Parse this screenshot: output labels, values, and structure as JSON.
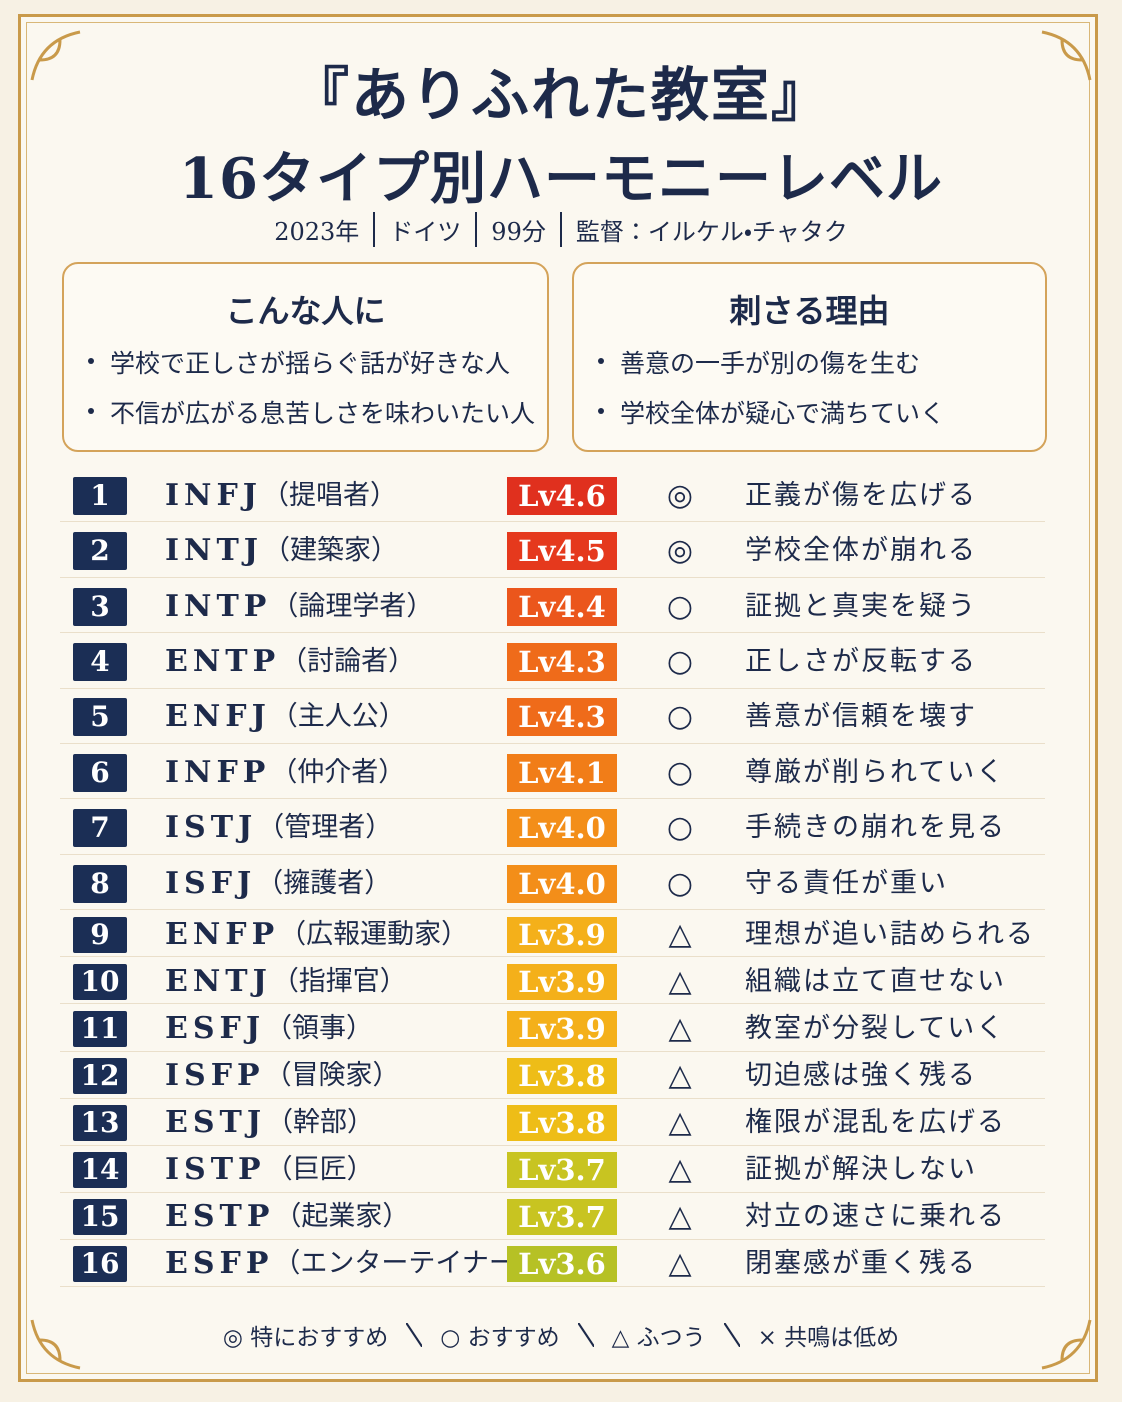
{
  "header": {
    "title_line1": "『ありふれた教室』",
    "title_line2": "16タイプ別ハーモニーレベル",
    "meta": [
      "2023年",
      "ドイツ",
      "99分",
      "監督：イルケル・チャタク"
    ]
  },
  "cards": [
    {
      "title": "こんな人に",
      "items": [
        "学校で正しさが揺らぐ話が好きな人",
        "不信が広がる息苦しさを味わいたい人"
      ]
    },
    {
      "title": "刺さる理由",
      "items": [
        "善意の一手が別の傷を生む",
        "学校全体が疑心で満ちていく"
      ]
    }
  ],
  "table": {
    "rows": [
      {
        "rank": "1",
        "type": "INFJ",
        "role": "（提唱者）",
        "level": "Lv4.6",
        "color": "#e0301e",
        "mark": "◎",
        "comment": "正義が傷を広げる"
      },
      {
        "rank": "2",
        "type": "INTJ",
        "role": "（建築家）",
        "level": "Lv4.5",
        "color": "#e5391d",
        "mark": "◎",
        "comment": "学校全体が崩れる"
      },
      {
        "rank": "3",
        "type": "INTP",
        "role": "（論理学者）",
        "level": "Lv4.4",
        "color": "#eb561c",
        "mark": "○",
        "comment": "証拠と真実を疑う"
      },
      {
        "rank": "4",
        "type": "ENTP",
        "role": "（討論者）",
        "level": "Lv4.3",
        "color": "#ef6b1a",
        "mark": "○",
        "comment": "正しさが反転する"
      },
      {
        "rank": "5",
        "type": "ENFJ",
        "role": "（主人公）",
        "level": "Lv4.3",
        "color": "#ef6b1a",
        "mark": "○",
        "comment": "善意が信頼を壊す"
      },
      {
        "rank": "6",
        "type": "INFP",
        "role": "（仲介者）",
        "level": "Lv4.1",
        "color": "#f17d18",
        "mark": "○",
        "comment": "尊厳が削られていく"
      },
      {
        "rank": "7",
        "type": "ISTJ",
        "role": "（管理者）",
        "level": "Lv4.0",
        "color": "#f38e19",
        "mark": "○",
        "comment": "手続きの崩れを見る"
      },
      {
        "rank": "8",
        "type": "ISFJ",
        "role": "（擁護者）",
        "level": "Lv4.0",
        "color": "#f38e19",
        "mark": "○",
        "comment": "守る責任が重い"
      },
      {
        "rank": "9",
        "type": "ENFP",
        "role": "（広報運動家）",
        "level": "Lv3.9",
        "color": "#f4b01a",
        "mark": "△",
        "comment": "理想が追い詰められる"
      },
      {
        "rank": "10",
        "type": "ENTJ",
        "role": "（指揮官）",
        "level": "Lv3.9",
        "color": "#f4b01a",
        "mark": "△",
        "comment": "組織は立て直せない"
      },
      {
        "rank": "11",
        "type": "ESFJ",
        "role": "（領事）",
        "level": "Lv3.9",
        "color": "#f4b01a",
        "mark": "△",
        "comment": "教室が分裂していく"
      },
      {
        "rank": "12",
        "type": "ISFP",
        "role": "（冒険家）",
        "level": "Lv3.8",
        "color": "#eebd17",
        "mark": "△",
        "comment": "切迫感は強く残る"
      },
      {
        "rank": "13",
        "type": "ESTJ",
        "role": "（幹部）",
        "level": "Lv3.8",
        "color": "#eebd17",
        "mark": "△",
        "comment": "権限が混乱を広げる"
      },
      {
        "rank": "14",
        "type": "ISTP",
        "role": "（巨匠）",
        "level": "Lv3.7",
        "color": "#c8c421",
        "mark": "△",
        "comment": "証拠が解決しない"
      },
      {
        "rank": "15",
        "type": "ESTP",
        "role": "（起業家）",
        "level": "Lv3.7",
        "color": "#c8c421",
        "mark": "△",
        "comment": "対立の速さに乗れる"
      },
      {
        "rank": "16",
        "type": "ESFP",
        "role": "（エンターテイナー）",
        "level": "Lv3.6",
        "color": "#b6c125",
        "mark": "△",
        "comment": "閉塞感が重く残る"
      }
    ]
  },
  "legend": [
    "◎ 特におすすめ",
    "○ おすすめ",
    "△ ふつう",
    "× 共鳴は低め"
  ]
}
